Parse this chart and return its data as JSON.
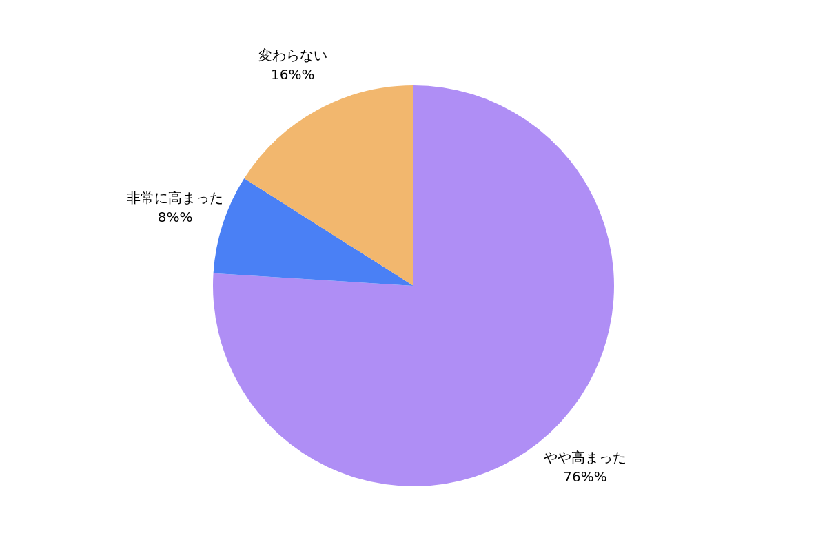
{
  "chart_data": {
    "type": "pie",
    "categories": [
      "やや高まった",
      "非常に高まった",
      "変わらない"
    ],
    "values": [
      76,
      8,
      16
    ],
    "colors": [
      "#af8ef5",
      "#4a80f5",
      "#f2b76e"
    ],
    "value_labels": [
      "76%%",
      "8%%",
      "16%%"
    ]
  }
}
